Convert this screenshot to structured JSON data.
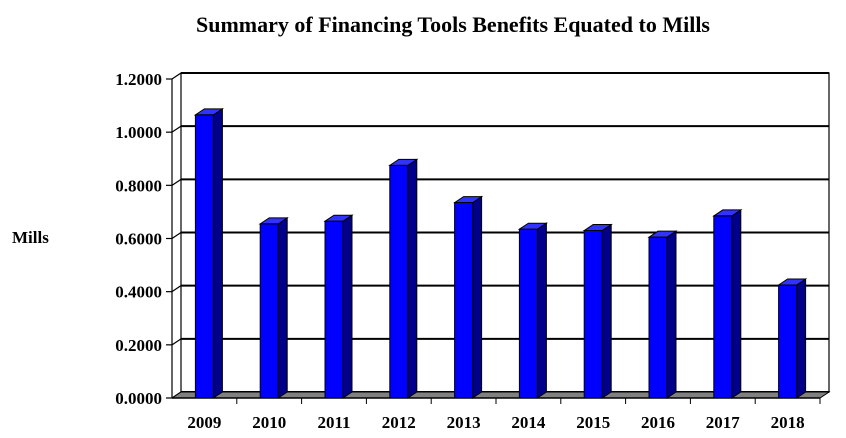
{
  "chart_data": {
    "type": "bar",
    "title": "Summary of Financing Tools Benefits Equated to Mills",
    "ylabel": "Mills",
    "xlabel": "",
    "categories": [
      "2009",
      "2010",
      "2011",
      "2012",
      "2013",
      "2014",
      "2015",
      "2016",
      "2017",
      "2018"
    ],
    "values": [
      1.065,
      0.655,
      0.665,
      0.875,
      0.735,
      0.635,
      0.63,
      0.605,
      0.685,
      0.425
    ],
    "ylim": [
      0,
      1.2
    ],
    "yticks": [
      "0.0000",
      "0.2000",
      "0.4000",
      "0.6000",
      "0.8000",
      "1.0000",
      "1.2000"
    ],
    "ytick_values": [
      0,
      0.2,
      0.4,
      0.6,
      0.8,
      1.0,
      1.2
    ],
    "grid": true,
    "legend": "none",
    "colors": {
      "bar_front": "#0000ff",
      "bar_side": "#00008b",
      "bar_top": "#3333ff",
      "floor": "#808080",
      "grid": "#000000"
    }
  }
}
